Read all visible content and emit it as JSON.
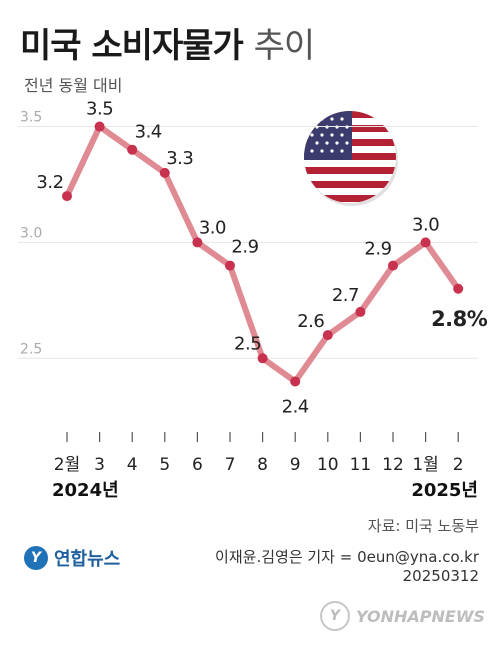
{
  "title_main": "미국 소비자물가",
  "title_light": "추이",
  "subtitle": "전년 동월 대비",
  "source": "자료: 미국 노동부",
  "logo": {
    "mark": "Y",
    "text": "연합뉴스"
  },
  "credit": {
    "line1": "이재윤.김영은 기자 = 0eun@yna.co.kr",
    "line2": "20250312"
  },
  "watermark": {
    "mark": "Y",
    "text": "YONHAPNEWS"
  },
  "colors": {
    "line": "#e08a93",
    "point": "#c8324e",
    "grid": "#e6e6e6"
  },
  "chart_data": {
    "type": "line",
    "categories": [
      "2월",
      "3",
      "4",
      "5",
      "6",
      "7",
      "8",
      "9",
      "10",
      "11",
      "12",
      "1월",
      "2"
    ],
    "year_labels": [
      {
        "text": "2024년",
        "index": 0
      },
      {
        "text": "2025년",
        "index": 12
      }
    ],
    "values": [
      3.2,
      3.5,
      3.4,
      3.3,
      3.0,
      2.9,
      2.5,
      2.4,
      2.6,
      2.7,
      2.9,
      3.0,
      2.8
    ],
    "data_labels": [
      "3.2",
      "3.5",
      "3.4",
      "3.3",
      "3.0",
      "2.9",
      "2.5",
      "2.4",
      "2.6",
      "2.7",
      "2.9",
      "3.0",
      "2.8%"
    ],
    "y_ticks": [
      "3.5",
      "3.0",
      "2.5"
    ],
    "ylim": [
      2.32,
      3.58
    ],
    "grid": true,
    "legend": "none"
  }
}
